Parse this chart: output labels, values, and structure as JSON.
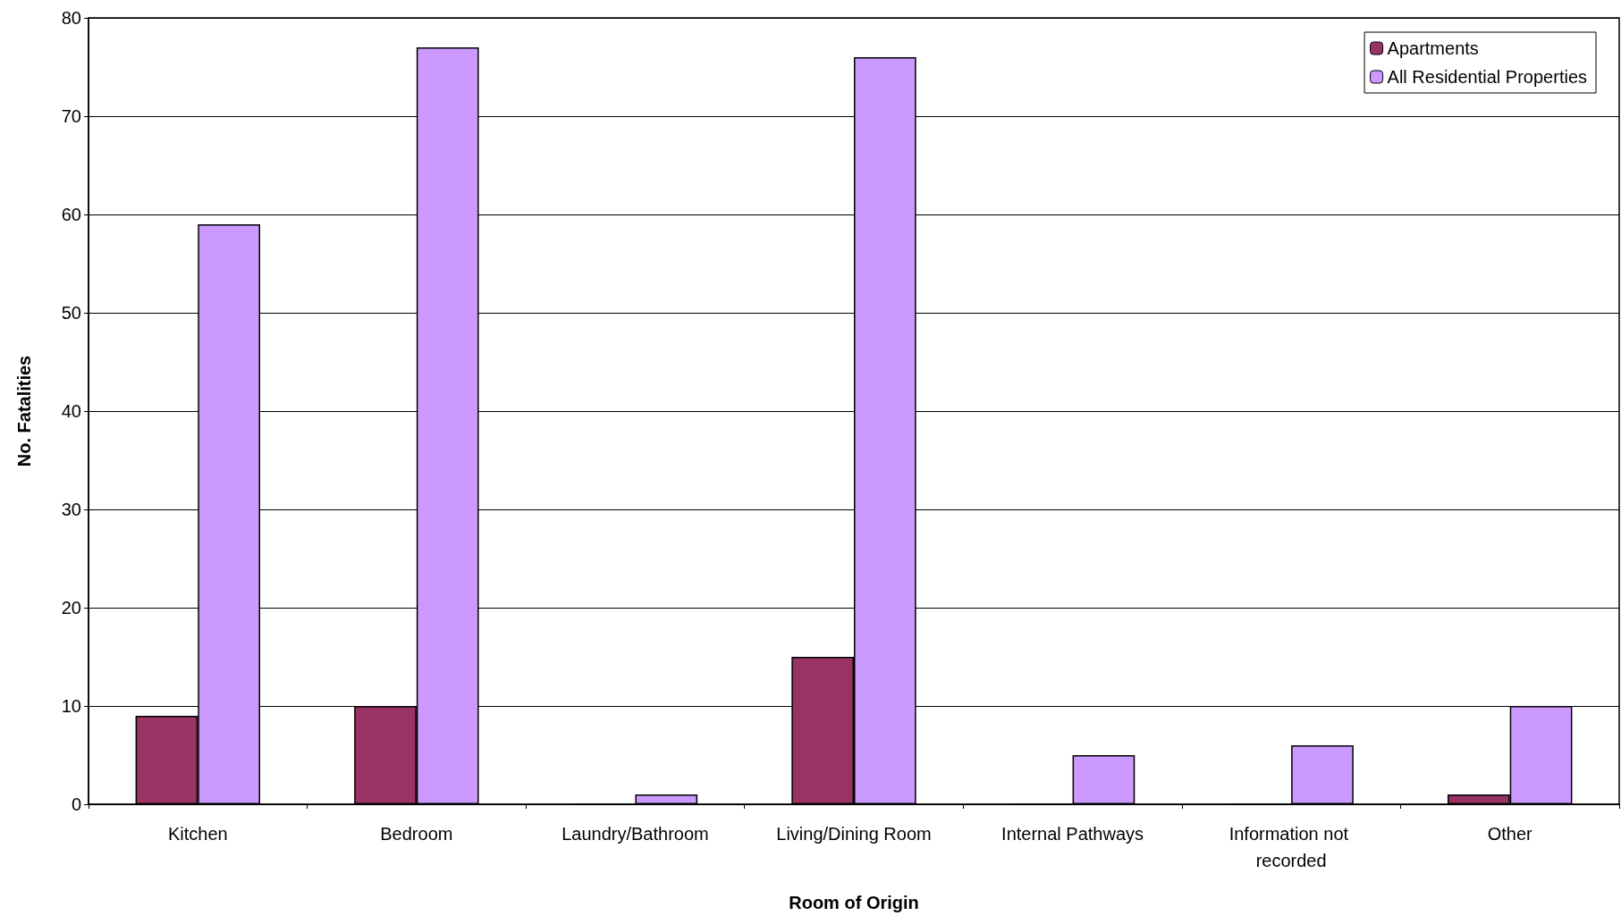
{
  "chart_data": {
    "type": "bar",
    "xlabel": "Room of Origin",
    "ylabel": "No. Fatalities",
    "categories": [
      "Kitchen",
      "Bedroom",
      "Laundry/Bathroom",
      "Living/Dining Room",
      "Internal Pathways",
      "Information not recorded",
      "Other"
    ],
    "series": [
      {
        "name": "Apartments",
        "color": "#993366",
        "values": [
          9,
          10,
          0,
          15,
          0,
          0,
          1
        ]
      },
      {
        "name": "All Residential Properties",
        "color": "#cc99ff",
        "values": [
          59,
          77,
          1,
          76,
          5,
          6,
          10
        ]
      }
    ],
    "ylim": [
      0,
      80
    ],
    "yticks": [
      0,
      10,
      20,
      30,
      40,
      50,
      60,
      70,
      80
    ],
    "grid": "y",
    "legend": "top right"
  }
}
